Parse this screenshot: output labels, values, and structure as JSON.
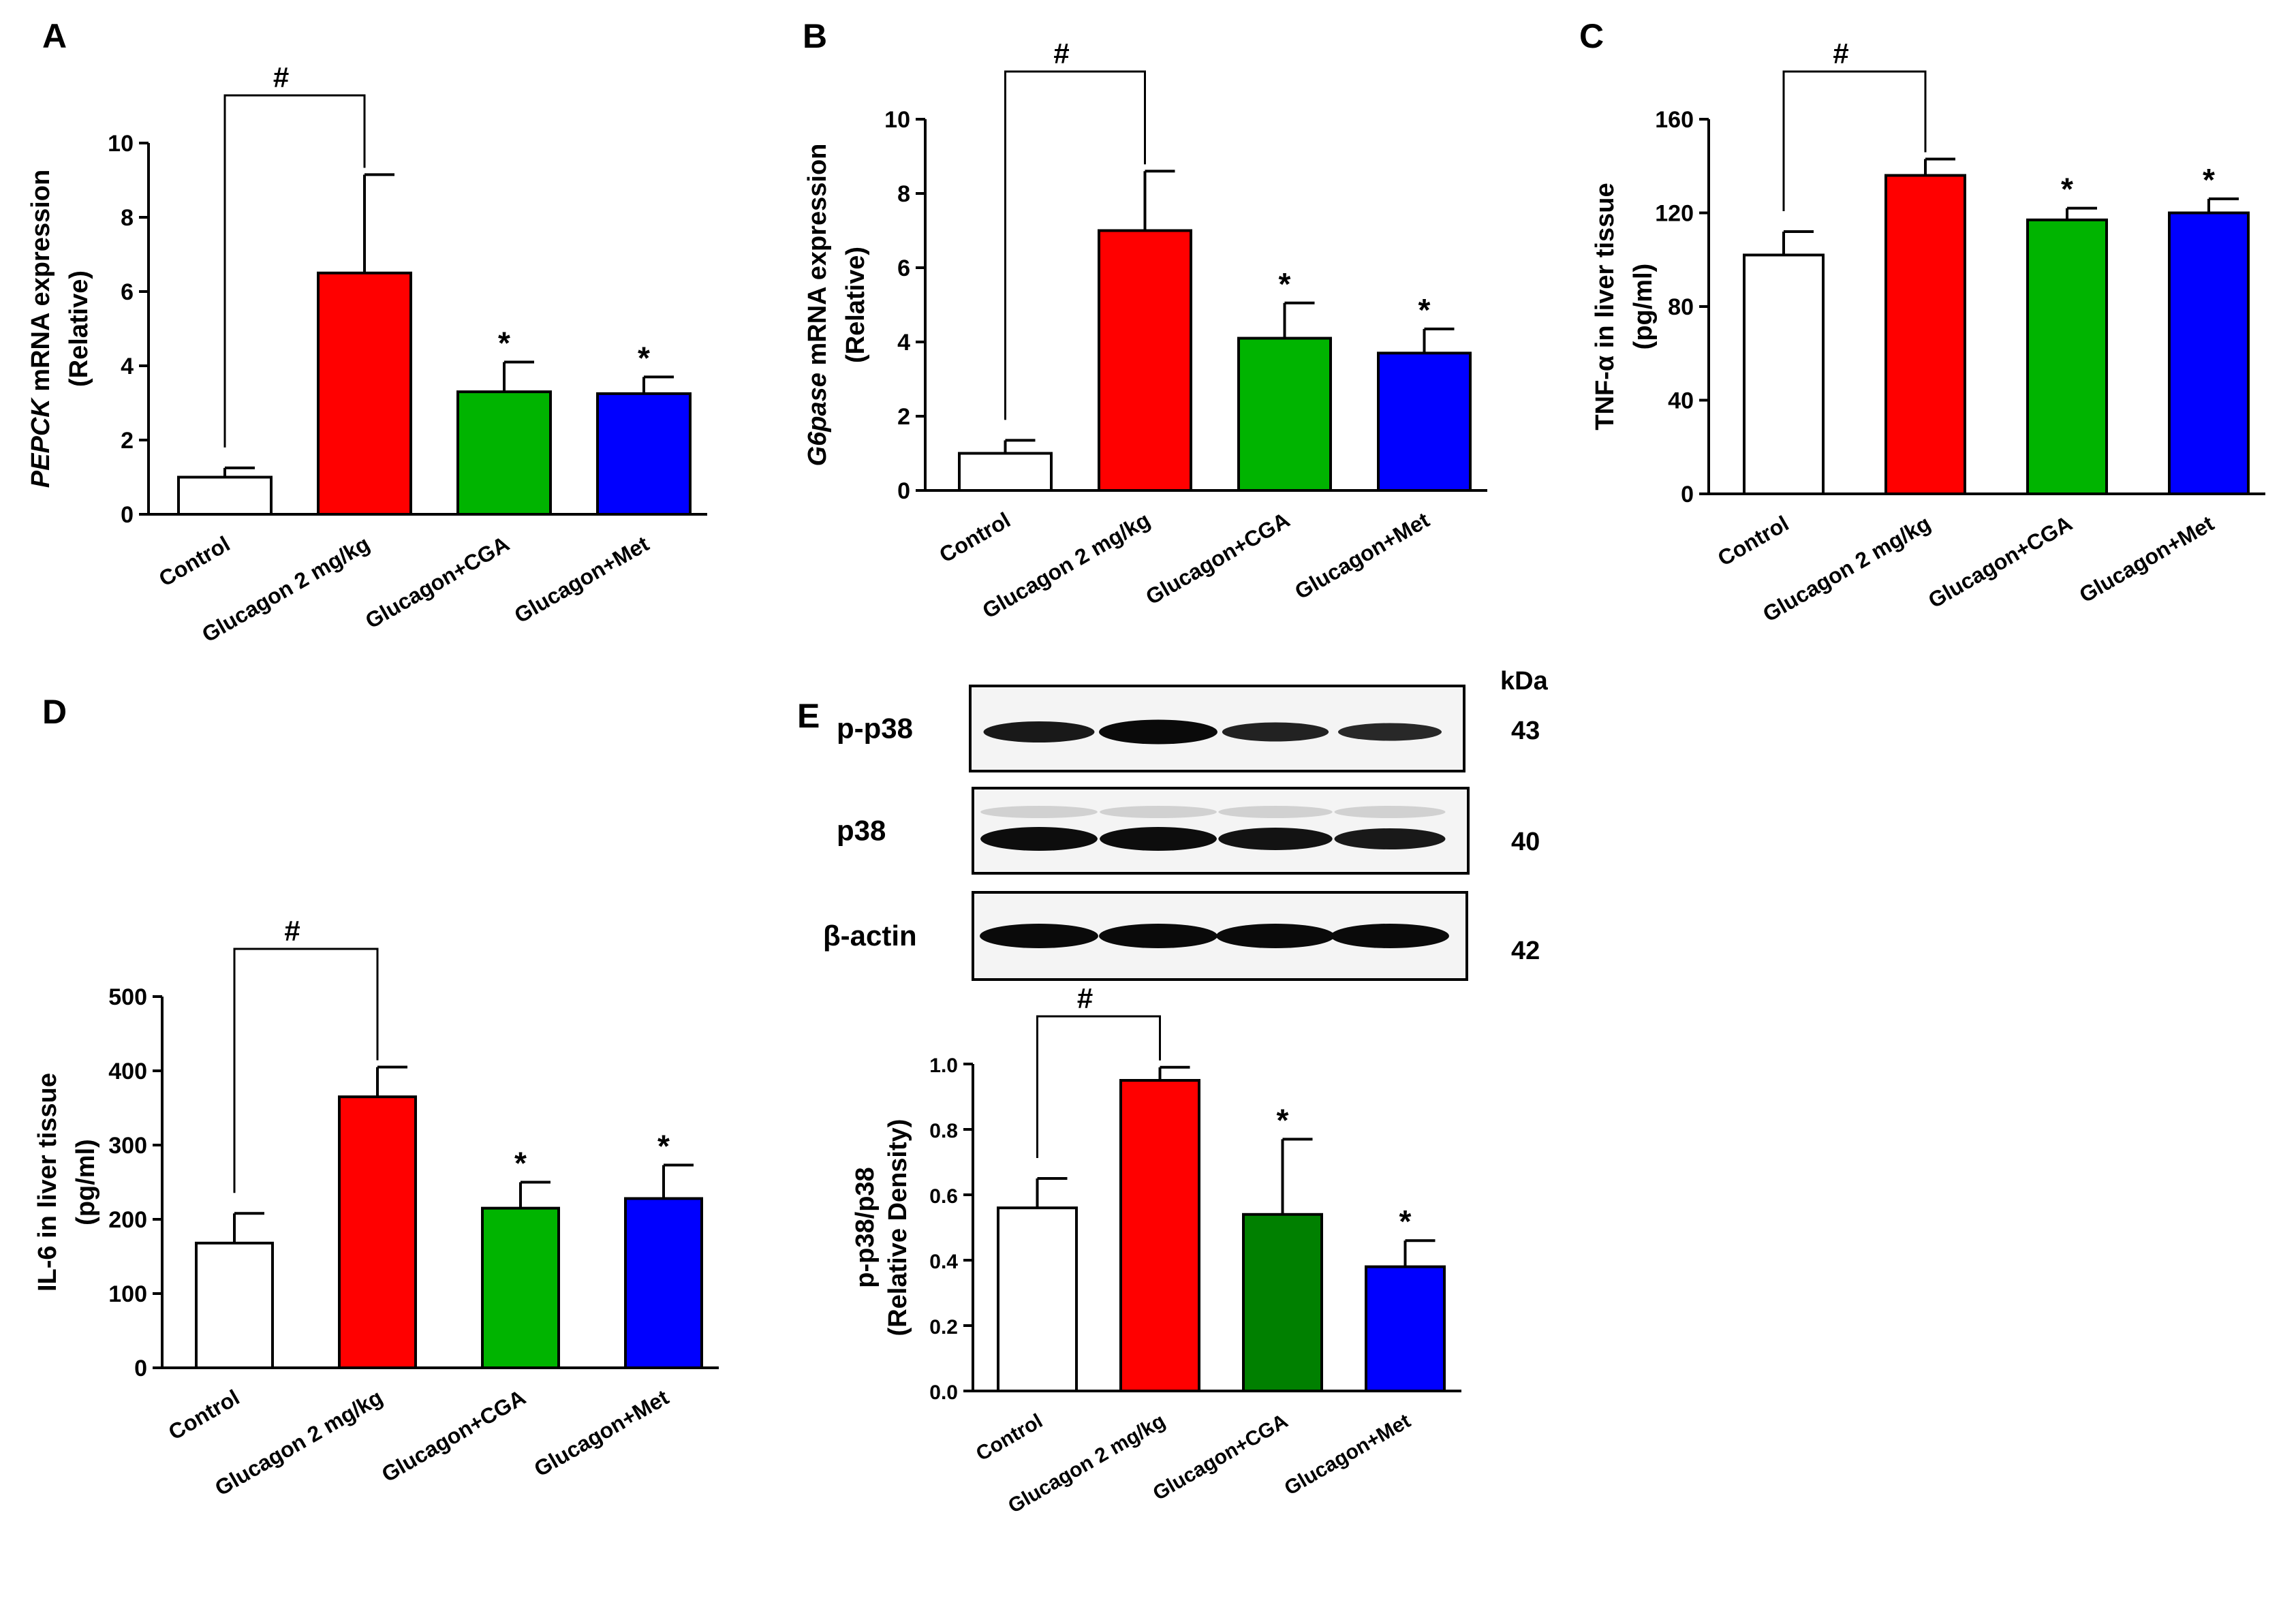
{
  "colors": {
    "control": "#ffffff",
    "glucagon": "#ff0000",
    "cga": "#00b400",
    "cga_dark": "#008000",
    "met": "#0000ff",
    "axis": "#000000"
  },
  "western_blot": {
    "kda_label": "kDa",
    "bands": [
      {
        "protein": "p-p38",
        "kda": "43",
        "intensities": [
          0.75,
          1.0,
          0.6,
          0.5
        ]
      },
      {
        "protein": "p38",
        "kda": "40",
        "intensities": [
          0.95,
          0.95,
          0.85,
          0.75
        ]
      },
      {
        "protein": "β-actin",
        "kda": "42",
        "intensities": [
          1.0,
          1.0,
          1.0,
          1.0
        ]
      }
    ]
  },
  "chart_data": [
    {
      "panel": "A",
      "type": "bar",
      "ylabel_italic": "PEPCK",
      "ylabel_rest": " mRNA expression",
      "ylabel_line2": "(Relative)",
      "categories": [
        "Control",
        "Glucagon 2 mg/kg",
        "Glucagon+CGA",
        "Glucagon+Met"
      ],
      "values": [
        1.0,
        6.5,
        3.3,
        3.25
      ],
      "errors": [
        0.25,
        2.65,
        0.8,
        0.45
      ],
      "ylim": [
        0,
        10
      ],
      "yticks": [
        "0",
        "2",
        "4",
        "6",
        "8",
        "10"
      ],
      "significance": {
        "hash": "#",
        "stars": [
          "",
          "",
          "*",
          "*"
        ]
      }
    },
    {
      "panel": "B",
      "type": "bar",
      "ylabel_italic": "G6pase",
      "ylabel_rest": " mRNA expression",
      "ylabel_line2": "(Relative)",
      "categories": [
        "Control",
        "Glucagon 2 mg/kg",
        "Glucagon+CGA",
        "Glucagon+Met"
      ],
      "values": [
        1.0,
        7.0,
        4.1,
        3.7
      ],
      "errors": [
        0.35,
        1.6,
        0.95,
        0.65
      ],
      "ylim": [
        0,
        10
      ],
      "yticks": [
        "0",
        "2",
        "4",
        "6",
        "8",
        "10"
      ],
      "significance": {
        "hash": "#",
        "stars": [
          "",
          "",
          "*",
          "*"
        ]
      }
    },
    {
      "panel": "C",
      "type": "bar",
      "ylabel_italic": "",
      "ylabel_rest": "TNF-α in liver tissue",
      "ylabel_line2": "(pg/ml)",
      "categories": [
        "Control",
        "Glucagon 2 mg/kg",
        "Glucagon+CGA",
        "Glucagon+Met"
      ],
      "values": [
        102,
        136,
        117,
        120
      ],
      "errors": [
        10,
        7,
        5,
        6
      ],
      "ylim": [
        0,
        160
      ],
      "yticks": [
        "0",
        "40",
        "80",
        "120",
        "160"
      ],
      "significance": {
        "hash": "#",
        "stars": [
          "",
          "",
          "*",
          "*"
        ]
      }
    },
    {
      "panel": "D",
      "type": "bar",
      "ylabel_italic": "",
      "ylabel_rest": "IL-6 in liver tissue",
      "ylabel_line2": "(pg/ml)",
      "categories": [
        "Control",
        "Glucagon 2 mg/kg",
        "Glucagon+CGA",
        "Glucagon+Met"
      ],
      "values": [
        168,
        365,
        215,
        228
      ],
      "errors": [
        40,
        40,
        35,
        45
      ],
      "ylim": [
        0,
        500
      ],
      "yticks": [
        "0",
        "100",
        "200",
        "300",
        "400",
        "500"
      ],
      "significance": {
        "hash": "#",
        "stars": [
          "",
          "",
          "*",
          "*"
        ]
      }
    },
    {
      "panel": "E",
      "type": "bar",
      "ylabel_italic": "",
      "ylabel_rest": "p-p38/p38",
      "ylabel_line2": "(Relative Density)",
      "categories": [
        "Control",
        "Glucagon 2 mg/kg",
        "Glucagon+CGA",
        "Glucagon+Met"
      ],
      "values": [
        0.56,
        0.95,
        0.54,
        0.38
      ],
      "errors": [
        0.09,
        0.04,
        0.23,
        0.08
      ],
      "ylim": [
        0,
        1.0
      ],
      "yticks": [
        "0.0",
        "0.2",
        "0.4",
        "0.6",
        "0.8",
        "1.0"
      ],
      "significance": {
        "hash": "#",
        "stars": [
          "",
          "",
          "*",
          "*"
        ]
      }
    }
  ]
}
